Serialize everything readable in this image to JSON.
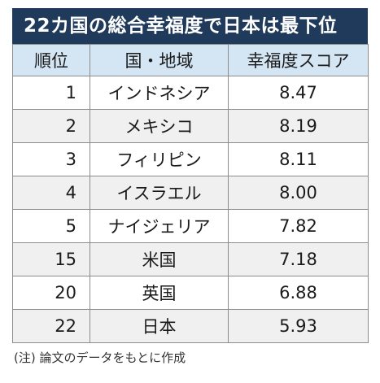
{
  "title": "22カ国の総合幸福度で日本は最下位",
  "table": {
    "headers": [
      "順位",
      "国・地域",
      "幸福度スコア"
    ],
    "rows": [
      {
        "rank": "1",
        "country": "インドネシア",
        "score": "8.47"
      },
      {
        "rank": "2",
        "country": "メキシコ",
        "score": "8.19"
      },
      {
        "rank": "3",
        "country": "フィリピン",
        "score": "8.11"
      },
      {
        "rank": "4",
        "country": "イスラエル",
        "score": "8.00"
      },
      {
        "rank": "5",
        "country": "ナイジェリア",
        "score": "7.82"
      },
      {
        "rank": "15",
        "country": "米国",
        "score": "7.18"
      },
      {
        "rank": "20",
        "country": "英国",
        "score": "6.88"
      },
      {
        "rank": "22",
        "country": "日本",
        "score": "5.93"
      }
    ]
  },
  "note": "(注) 論文のデータをもとに作成",
  "colors": {
    "title_bg": "#1f3a5a",
    "header_bg": "#d4e5f3",
    "row_alt_bg": "#f0f0f0"
  }
}
